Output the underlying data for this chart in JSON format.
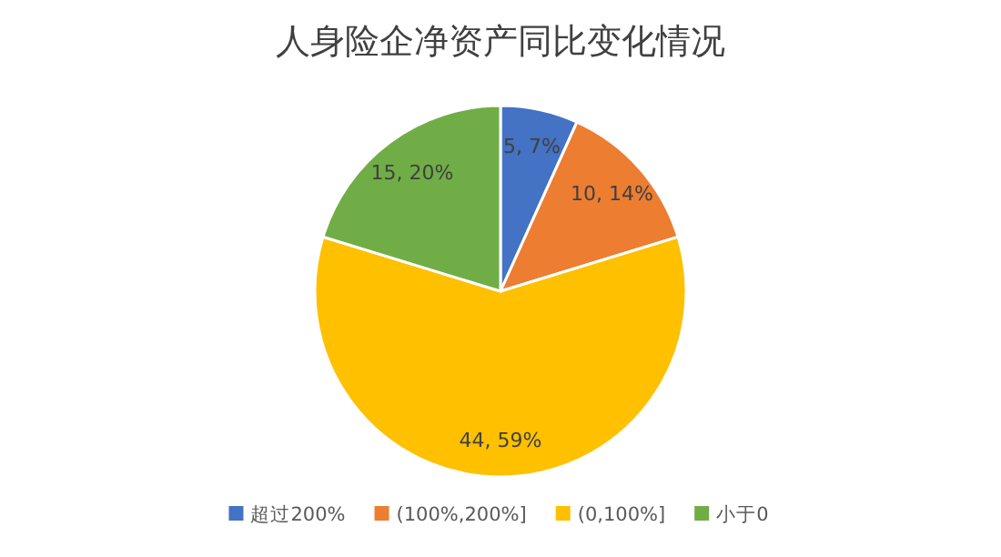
{
  "chart_data": {
    "type": "pie",
    "title": "人身险企净资产同比变化情况",
    "categories": [
      "超过200%",
      "(100%,200%]",
      "(0,100%]",
      "小于0"
    ],
    "values": [
      5,
      10,
      44,
      15
    ],
    "value_labels": [
      "5, 7%",
      "10, 14%",
      "44, 59%",
      "15, 20%"
    ],
    "colors": [
      "#4472c4",
      "#ed7d31",
      "#ffc000",
      "#70ad47"
    ],
    "legend": "bottom"
  }
}
